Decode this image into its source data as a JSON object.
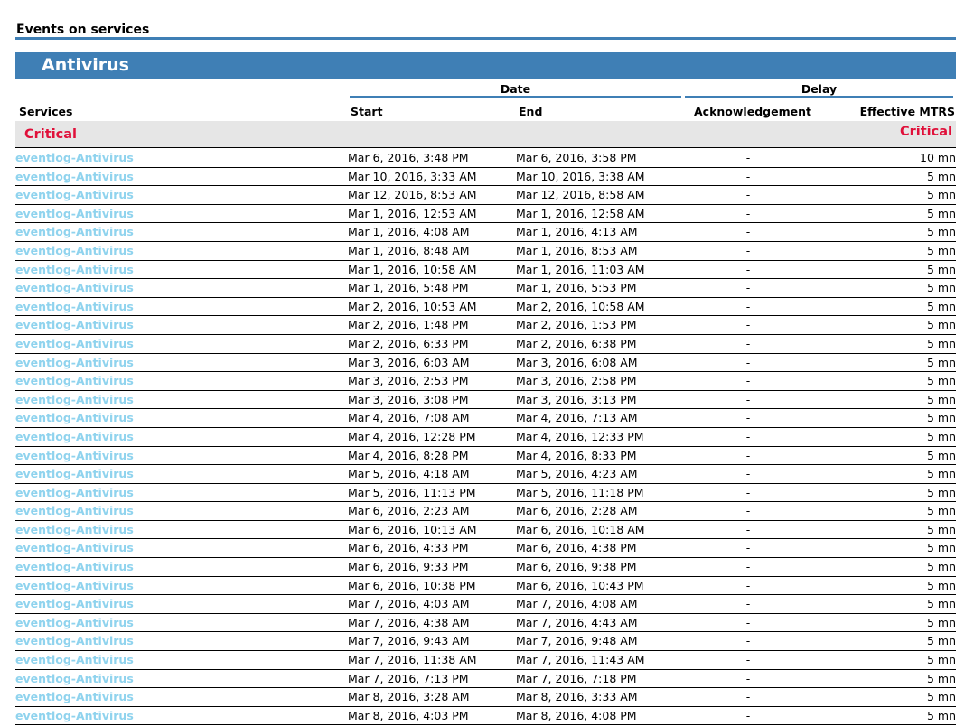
{
  "page_title": "Events on services",
  "section_title": "Antivirus",
  "groups": {
    "date": "Date",
    "delay": "Delay"
  },
  "columns": {
    "services": "Services",
    "start": "Start",
    "end": "End",
    "ack": "Acknowledgement",
    "mtrs": "Effective MTRS"
  },
  "status_group": {
    "label": "Critical",
    "label_right": "Critical",
    "color": "#e0103a"
  },
  "accent_color": "#3f7fb5",
  "rows": [
    [
      "eventlog-Antivirus",
      "Mar 6, 2016, 3:48 PM",
      "Mar 6, 2016, 3:58 PM",
      "-",
      "10 mn"
    ],
    [
      "eventlog-Antivirus",
      "Mar 10, 2016, 3:33 AM",
      "Mar 10, 2016, 3:38 AM",
      "-",
      "5 mn"
    ],
    [
      "eventlog-Antivirus",
      "Mar 12, 2016, 8:53 AM",
      "Mar 12, 2016, 8:58 AM",
      "-",
      "5 mn"
    ],
    [
      "eventlog-Antivirus",
      "Mar 1, 2016, 12:53 AM",
      "Mar 1, 2016, 12:58 AM",
      "-",
      "5 mn"
    ],
    [
      "eventlog-Antivirus",
      "Mar 1, 2016, 4:08 AM",
      "Mar 1, 2016, 4:13 AM",
      "-",
      "5 mn"
    ],
    [
      "eventlog-Antivirus",
      "Mar 1, 2016, 8:48 AM",
      "Mar 1, 2016, 8:53 AM",
      "-",
      "5 mn"
    ],
    [
      "eventlog-Antivirus",
      "Mar 1, 2016, 10:58 AM",
      "Mar 1, 2016, 11:03 AM",
      "-",
      "5 mn"
    ],
    [
      "eventlog-Antivirus",
      "Mar 1, 2016, 5:48 PM",
      "Mar 1, 2016, 5:53 PM",
      "-",
      "5 mn"
    ],
    [
      "eventlog-Antivirus",
      "Mar 2, 2016, 10:53 AM",
      "Mar 2, 2016, 10:58 AM",
      "-",
      "5 mn"
    ],
    [
      "eventlog-Antivirus",
      "Mar 2, 2016, 1:48 PM",
      "Mar 2, 2016, 1:53 PM",
      "-",
      "5 mn"
    ],
    [
      "eventlog-Antivirus",
      "Mar 2, 2016, 6:33 PM",
      "Mar 2, 2016, 6:38 PM",
      "-",
      "5 mn"
    ],
    [
      "eventlog-Antivirus",
      "Mar 3, 2016, 6:03 AM",
      "Mar 3, 2016, 6:08 AM",
      "-",
      "5 mn"
    ],
    [
      "eventlog-Antivirus",
      "Mar 3, 2016, 2:53 PM",
      "Mar 3, 2016, 2:58 PM",
      "-",
      "5 mn"
    ],
    [
      "eventlog-Antivirus",
      "Mar 3, 2016, 3:08 PM",
      "Mar 3, 2016, 3:13 PM",
      "-",
      "5 mn"
    ],
    [
      "eventlog-Antivirus",
      "Mar 4, 2016, 7:08 AM",
      "Mar 4, 2016, 7:13 AM",
      "-",
      "5 mn"
    ],
    [
      "eventlog-Antivirus",
      "Mar 4, 2016, 12:28 PM",
      "Mar 4, 2016, 12:33 PM",
      "-",
      "5 mn"
    ],
    [
      "eventlog-Antivirus",
      "Mar 4, 2016, 8:28 PM",
      "Mar 4, 2016, 8:33 PM",
      "-",
      "5 mn"
    ],
    [
      "eventlog-Antivirus",
      "Mar 5, 2016, 4:18 AM",
      "Mar 5, 2016, 4:23 AM",
      "-",
      "5 mn"
    ],
    [
      "eventlog-Antivirus",
      "Mar 5, 2016, 11:13 PM",
      "Mar 5, 2016, 11:18 PM",
      "-",
      "5 mn"
    ],
    [
      "eventlog-Antivirus",
      "Mar 6, 2016, 2:23 AM",
      "Mar 6, 2016, 2:28 AM",
      "-",
      "5 mn"
    ],
    [
      "eventlog-Antivirus",
      "Mar 6, 2016, 10:13 AM",
      "Mar 6, 2016, 10:18 AM",
      "-",
      "5 mn"
    ],
    [
      "eventlog-Antivirus",
      "Mar 6, 2016, 4:33 PM",
      "Mar 6, 2016, 4:38 PM",
      "-",
      "5 mn"
    ],
    [
      "eventlog-Antivirus",
      "Mar 6, 2016, 9:33 PM",
      "Mar 6, 2016, 9:38 PM",
      "-",
      "5 mn"
    ],
    [
      "eventlog-Antivirus",
      "Mar 6, 2016, 10:38 PM",
      "Mar 6, 2016, 10:43 PM",
      "-",
      "5 mn"
    ],
    [
      "eventlog-Antivirus",
      "Mar 7, 2016, 4:03 AM",
      "Mar 7, 2016, 4:08 AM",
      "-",
      "5 mn"
    ],
    [
      "eventlog-Antivirus",
      "Mar 7, 2016, 4:38 AM",
      "Mar 7, 2016, 4:43 AM",
      "-",
      "5 mn"
    ],
    [
      "eventlog-Antivirus",
      "Mar 7, 2016, 9:43 AM",
      "Mar 7, 2016, 9:48 AM",
      "-",
      "5 mn"
    ],
    [
      "eventlog-Antivirus",
      "Mar 7, 2016, 11:38 AM",
      "Mar 7, 2016, 11:43 AM",
      "-",
      "5 mn"
    ],
    [
      "eventlog-Antivirus",
      "Mar 7, 2016, 7:13 PM",
      "Mar 7, 2016, 7:18 PM",
      "-",
      "5 mn"
    ],
    [
      "eventlog-Antivirus",
      "Mar 8, 2016, 3:28 AM",
      "Mar 8, 2016, 3:33 AM",
      "-",
      "5 mn"
    ],
    [
      "eventlog-Antivirus",
      "Mar 8, 2016, 4:03 PM",
      "Mar 8, 2016, 4:08 PM",
      "-",
      "5 mn"
    ]
  ]
}
